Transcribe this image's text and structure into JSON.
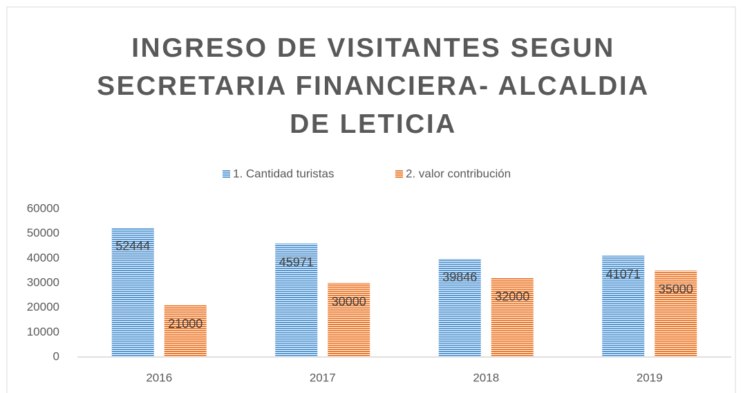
{
  "chart_data": {
    "type": "bar",
    "title": "INGRESO DE VISITANTES SEGUN SECRETARIA FINANCIERA- ALCALDIA DE LETICIA",
    "categories": [
      "2016",
      "2017",
      "2018",
      "2019"
    ],
    "series": [
      {
        "name": "1. Cantidad turistas",
        "color": "#5b9bd5",
        "values": [
          52444,
          45971,
          39846,
          41071
        ]
      },
      {
        "name": "2. valor contribución",
        "color": "#ed7d31",
        "values": [
          21000,
          30000,
          32000,
          35000
        ]
      }
    ],
    "ylim": [
      0,
      60000
    ],
    "yticks": [
      0,
      10000,
      20000,
      30000,
      40000,
      50000,
      60000
    ],
    "grid": false,
    "legend": "top",
    "data_labels": true
  }
}
